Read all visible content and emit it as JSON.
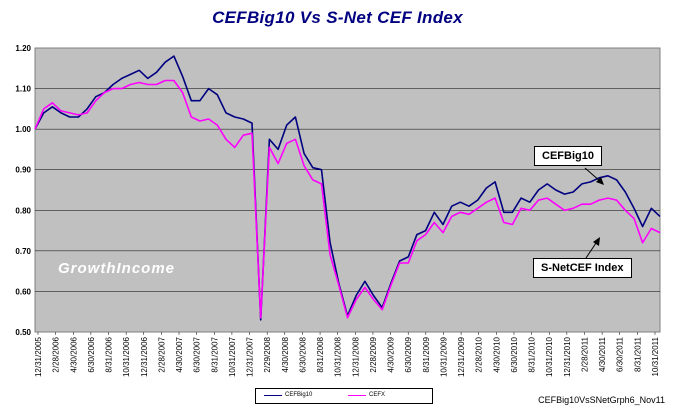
{
  "chart_data": {
    "type": "line",
    "title": "CEFBig10 Vs S-Net CEF Index",
    "watermark": "GrowthIncome",
    "footnote": "CEFBig10VsSNetGrph6_Nov11",
    "ylim": [
      0.5,
      1.2
    ],
    "yticks": [
      "0.50",
      "0.60",
      "0.70",
      "0.80",
      "0.90",
      "1.00",
      "1.10",
      "1.20"
    ],
    "grid": "horizontal",
    "legend_position": "bottom",
    "xtick_labels": [
      "12/31/2005",
      "2/28/2006",
      "4/30/2006",
      "6/30/2006",
      "8/31/2006",
      "10/31/2006",
      "12/31/2006",
      "2/28/2007",
      "4/30/2007",
      "6/30/2007",
      "8/31/2007",
      "10/31/2007",
      "12/31/2007",
      "2/29/2008",
      "4/30/2008",
      "6/30/2008",
      "8/31/2008",
      "10/31/2008",
      "12/31/2008",
      "2/28/2009",
      "4/30/2009",
      "6/30/2009",
      "8/31/2009",
      "10/31/2009",
      "12/31/2009",
      "2/28/2010",
      "4/30/2010",
      "6/30/2010",
      "8/31/2010",
      "10/31/2010",
      "12/31/2010",
      "2/28/2011",
      "4/30/2011",
      "6/30/2011",
      "8/31/2011",
      "10/31/2011"
    ],
    "series": [
      {
        "name": "CEFBig10",
        "color": "#000080",
        "values": [
          1.0,
          1.04,
          1.055,
          1.04,
          1.03,
          1.03,
          1.05,
          1.08,
          1.09,
          1.11,
          1.125,
          1.135,
          1.145,
          1.125,
          1.14,
          1.165,
          1.18,
          1.13,
          1.07,
          1.07,
          1.1,
          1.085,
          1.04,
          1.03,
          1.025,
          1.015,
          0.53,
          0.975,
          0.95,
          1.01,
          1.03,
          0.94,
          0.905,
          0.9,
          0.72,
          0.62,
          0.54,
          0.59,
          0.625,
          0.59,
          0.56,
          0.62,
          0.675,
          0.685,
          0.74,
          0.75,
          0.795,
          0.765,
          0.81,
          0.82,
          0.81,
          0.825,
          0.855,
          0.87,
          0.795,
          0.795,
          0.83,
          0.82,
          0.85,
          0.865,
          0.85,
          0.84,
          0.845,
          0.865,
          0.87,
          0.88,
          0.885,
          0.875,
          0.845,
          0.805,
          0.76,
          0.805,
          0.785
        ]
      },
      {
        "name": "CEFX",
        "callout": "S-NetCEF Index",
        "color": "#ff00ff",
        "values": [
          1.0,
          1.05,
          1.065,
          1.045,
          1.04,
          1.035,
          1.04,
          1.07,
          1.09,
          1.1,
          1.1,
          1.11,
          1.115,
          1.11,
          1.11,
          1.12,
          1.12,
          1.09,
          1.03,
          1.02,
          1.025,
          1.01,
          0.975,
          0.955,
          0.985,
          0.99,
          0.535,
          0.955,
          0.915,
          0.965,
          0.975,
          0.91,
          0.875,
          0.865,
          0.69,
          0.615,
          0.535,
          0.58,
          0.61,
          0.58,
          0.555,
          0.615,
          0.67,
          0.67,
          0.725,
          0.74,
          0.77,
          0.745,
          0.785,
          0.795,
          0.79,
          0.805,
          0.82,
          0.83,
          0.77,
          0.765,
          0.805,
          0.8,
          0.825,
          0.83,
          0.815,
          0.8,
          0.805,
          0.815,
          0.815,
          0.825,
          0.83,
          0.825,
          0.8,
          0.78,
          0.72,
          0.755,
          0.745
        ]
      }
    ],
    "annotations": [
      {
        "text": "CEFBig10",
        "series": "CEFBig10"
      },
      {
        "text": "S-NetCEF Index",
        "series": "CEFX"
      }
    ]
  }
}
